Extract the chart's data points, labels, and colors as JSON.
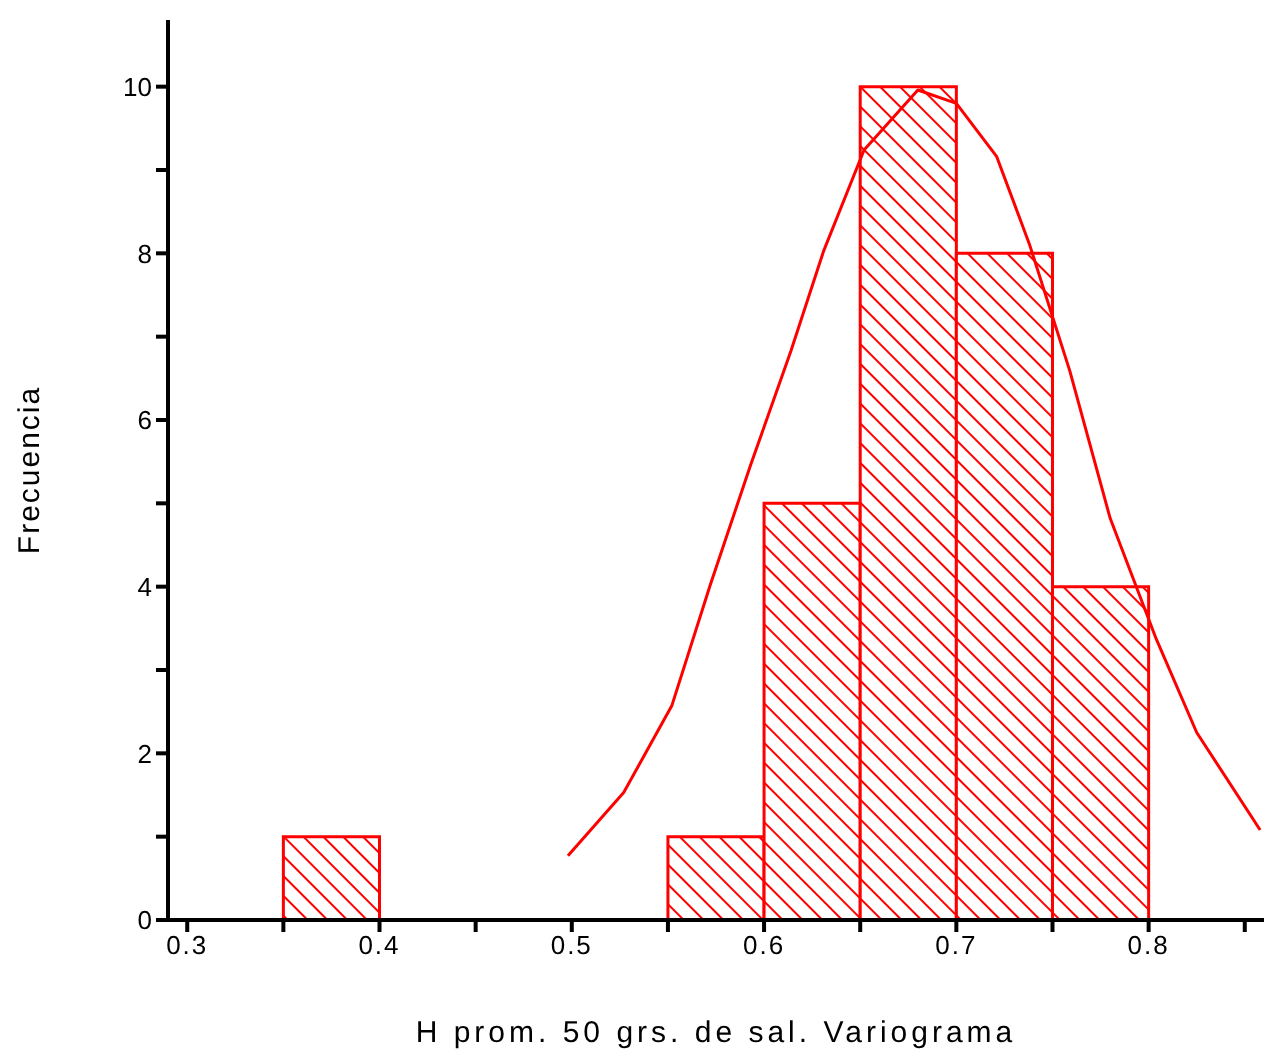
{
  "chart_data": {
    "type": "histogram",
    "xlabel": "H prom. 50 grs. de sal. Variograma",
    "ylabel": "Frecuencia",
    "bins": [
      0.35,
      0.4,
      0.45,
      0.5,
      0.55,
      0.6,
      0.65,
      0.7,
      0.75,
      0.8
    ],
    "values": [
      1,
      0,
      0,
      0,
      1,
      5,
      10,
      8,
      4
    ],
    "color": "#ff0000",
    "series": [
      {
        "type": "line",
        "color": "#ff0000",
        "x": [
          0.498,
          0.527,
          0.552,
          0.572,
          0.593,
          0.614,
          0.631,
          0.652,
          0.68,
          0.7,
          0.721,
          0.738,
          0.759,
          0.78,
          0.804,
          0.825,
          0.858
        ],
        "values": [
          0.77,
          1.53,
          2.57,
          4.02,
          5.46,
          6.83,
          8.03,
          9.24,
          9.96,
          9.8,
          9.16,
          8.11,
          6.59,
          4.82,
          3.37,
          2.25,
          1.08
        ]
      }
    ],
    "xlim": [
      0.29,
      0.86
    ],
    "xticks": [
      0.3,
      {
        "value": 0.35,
        "label": null
      },
      0.4,
      {
        "value": 0.45,
        "label": null
      },
      0.5,
      {
        "value": 0.55,
        "label": null
      },
      0.6,
      {
        "value": 0.65,
        "label": null
      },
      0.7,
      {
        "value": 0.75,
        "label": null
      },
      0.8,
      {
        "value": 0.85,
        "label": null
      }
    ],
    "ylim": [
      0,
      10.8
    ],
    "yticks": [
      0,
      {
        "value": 1,
        "label": null
      },
      2,
      {
        "value": 3,
        "label": null
      },
      4,
      {
        "value": 5,
        "label": null
      },
      6,
      {
        "value": 7,
        "label": null
      },
      8,
      {
        "value": 9,
        "label": null
      },
      10
    ],
    "marker": "none",
    "line_style": "solid"
  }
}
